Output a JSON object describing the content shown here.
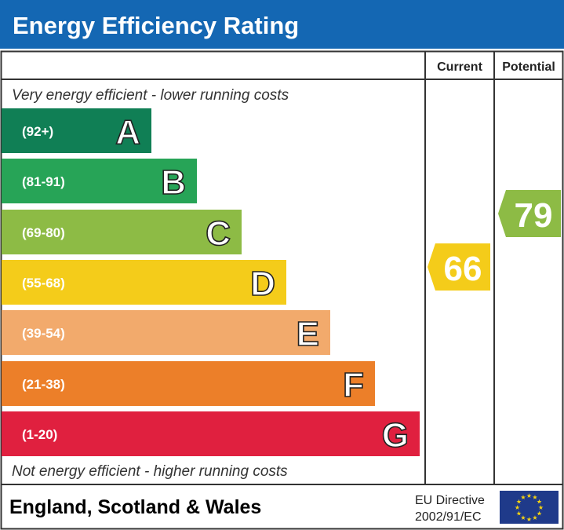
{
  "title": "Energy Efficiency Rating",
  "header": {
    "current": "Current",
    "potential": "Potential"
  },
  "top_note": "Very energy efficient - lower running costs",
  "bottom_note": "Not energy efficient - higher running costs",
  "footer": {
    "region": "England, Scotland & Wales",
    "directive_line1": "EU Directive",
    "directive_line2": "2002/91/EC",
    "flag": "eu-flag-icon"
  },
  "colors": {
    "header_bg": "#1467b3"
  },
  "chart_data": {
    "type": "bar",
    "bands": [
      {
        "letter": "A",
        "range": "(92+)",
        "color": "#107f55"
      },
      {
        "letter": "B",
        "range": "(81-91)",
        "color": "#27a457"
      },
      {
        "letter": "C",
        "range": "(69-80)",
        "color": "#8dbb45"
      },
      {
        "letter": "D",
        "range": "(55-68)",
        "color": "#f4cc1a"
      },
      {
        "letter": "E",
        "range": "(39-54)",
        "color": "#f2aa6c"
      },
      {
        "letter": "F",
        "range": "(21-38)",
        "color": "#ec7f29"
      },
      {
        "letter": "G",
        "range": "(1-20)",
        "color": "#e0203f"
      }
    ],
    "current": {
      "value": 66,
      "band": "D",
      "color": "#f4cc1a"
    },
    "potential": {
      "value": 79,
      "band": "C",
      "color": "#8dbb45"
    }
  }
}
